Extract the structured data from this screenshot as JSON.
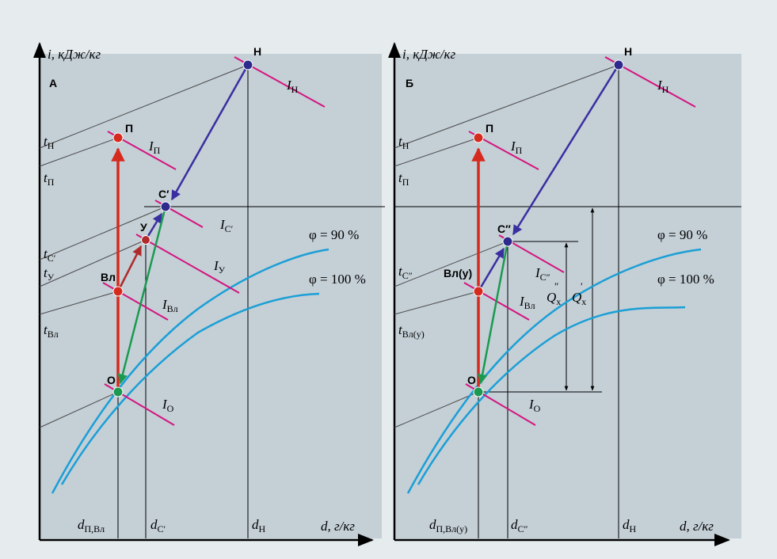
{
  "colors": {
    "background": "#e6ebee",
    "panel": "#c4cfd6",
    "axis": "#000000",
    "isotherm": "#4a4a4a",
    "enthalpy": "#d4147f",
    "saturation": "#1a9fd6",
    "process_red": "#d62a1e",
    "process_dark_red": "#b02a2a",
    "process_blue": "#3a2fa0",
    "process_green": "#1a9a50",
    "point_blue": "#2e2a8c",
    "point_red": "#d62a1e",
    "point_green": "#1a9a50"
  },
  "panelA": {
    "label": "А",
    "yaxis": "i, кДж/кг",
    "xaxis": "d, г/кг",
    "phi90": "φ = 90 %",
    "phi100": "φ = 100 %",
    "points": {
      "N": "Н",
      "P": "П",
      "C": "С′",
      "U": "У",
      "VL": "Вл",
      "O": "О"
    },
    "t_labels": {
      "tN": "H",
      "tP": "П",
      "tC": "C′",
      "tU": "У",
      "tVL": "Вл"
    },
    "I_labels": {
      "IN": "H",
      "IP": "П",
      "IC": "C′",
      "IU": "У",
      "IVL": "Вл",
      "IO": "O"
    },
    "d_labels": {
      "d1": "П,Вл",
      "d2": "C′",
      "d3": "H"
    }
  },
  "panelB": {
    "label": "Б",
    "yaxis": "i, кДж/кг",
    "xaxis": "d, г/кг",
    "phi90": "φ = 90 %",
    "phi100": "φ = 100 %",
    "points": {
      "N": "Н",
      "P": "П",
      "C": "С″",
      "VL": "Вл(у)",
      "O": "О"
    },
    "t_labels": {
      "tN": "H",
      "tP": "П",
      "tC": "C″",
      "tVL": "Вл(у)"
    },
    "I_labels": {
      "IN": "H",
      "IP": "П",
      "IC": "C″",
      "IVL": "Вл",
      "IO": "O"
    },
    "Q_labels": {
      "Q1": "x",
      "Q2": "x"
    },
    "d_labels": {
      "d1": "П,Вл(у)",
      "d2": "C″",
      "d3": "H"
    }
  }
}
